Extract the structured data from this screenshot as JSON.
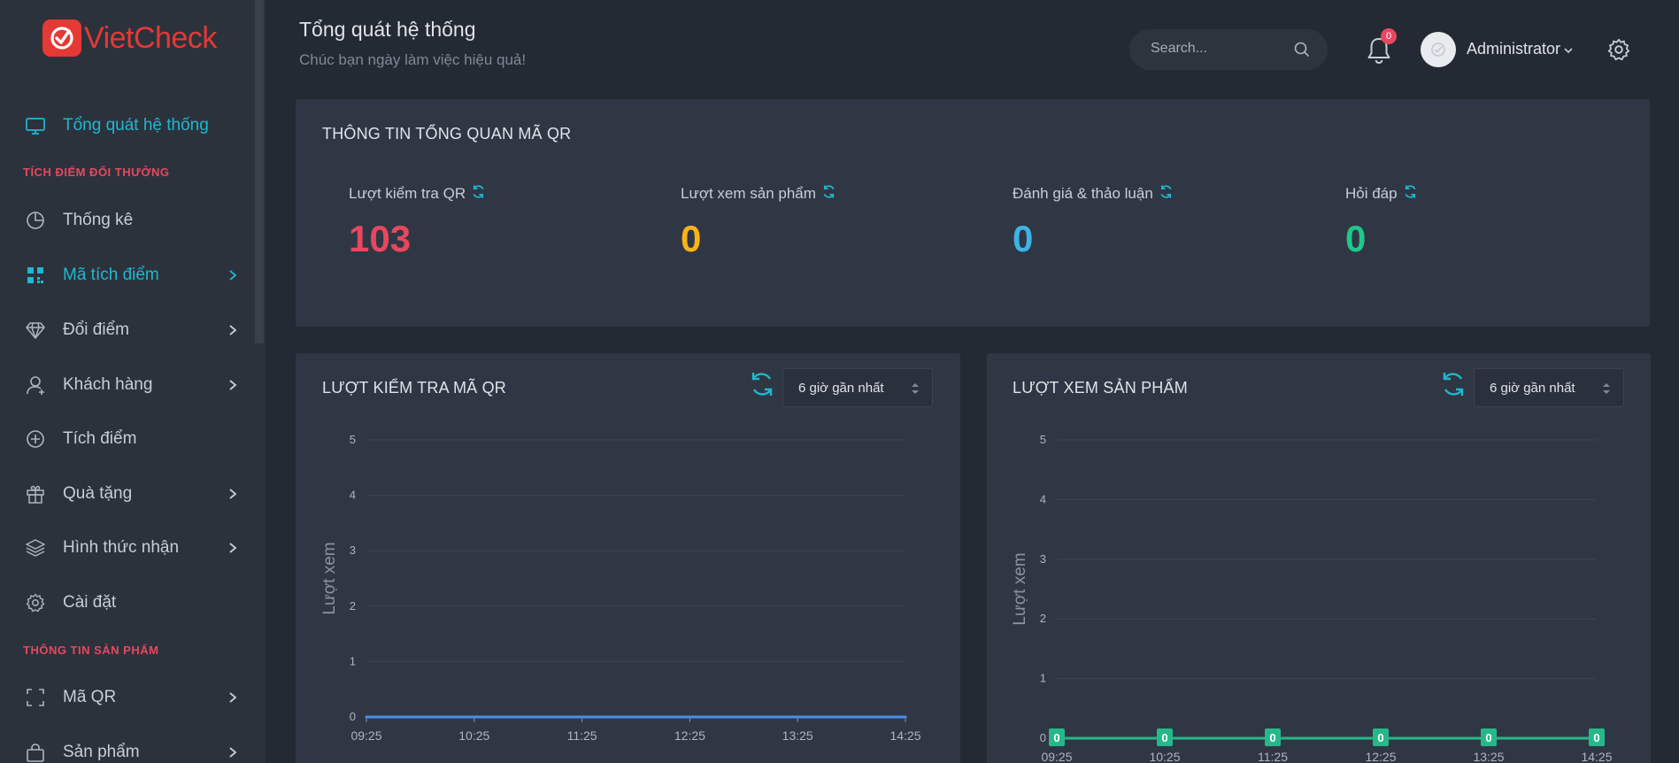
{
  "brand": {
    "name": "VietCheck",
    "color": "#e53935"
  },
  "header": {
    "title": "Tổng quát hệ thống",
    "subtitle": "Chúc bạn ngày làm việc hiệu quả!",
    "search_placeholder": "Search...",
    "notification_count": "0",
    "user_name": "Administrator"
  },
  "sidebar": {
    "items": [
      {
        "label": "Tổng quát hệ thống",
        "icon": "monitor-icon",
        "active": true
      },
      {
        "label": "Thống kê",
        "icon": "pie-chart-icon"
      },
      {
        "label": "Mã tích điểm",
        "icon": "qr-grid-icon",
        "active": true,
        "has_submenu": true
      },
      {
        "label": "Đổi điểm",
        "icon": "diamond-icon",
        "has_submenu": true
      },
      {
        "label": "Khách hàng",
        "icon": "user-icon",
        "has_submenu": true
      },
      {
        "label": "Tích điểm",
        "icon": "plus-circle-icon"
      },
      {
        "label": "Quà tặng",
        "icon": "gift-icon",
        "has_submenu": true
      },
      {
        "label": "Hình thức nhận",
        "icon": "layers-icon",
        "has_submenu": true
      },
      {
        "label": "Cài đặt",
        "icon": "gear-icon"
      },
      {
        "label": "Mã QR",
        "icon": "scan-icon",
        "has_submenu": true
      },
      {
        "label": "Sản phẩm",
        "icon": "bag-icon",
        "has_submenu": true
      }
    ],
    "sections": [
      "TÍCH ĐIỂM ĐỔI THƯỞNG",
      "THÔNG TIN SẢN PHẨM"
    ]
  },
  "overview": {
    "title": "THÔNG TIN TỔNG QUAN MÃ QR",
    "stats": [
      {
        "label": "Lượt kiểm tra QR",
        "value": "103",
        "color": "#e8475f"
      },
      {
        "label": "Lượt xem sản phẩm",
        "value": "0",
        "color": "#f6b419"
      },
      {
        "label": "Đánh giá & thảo luận",
        "value": "0",
        "color": "#3eb3e6"
      },
      {
        "label": "Hỏi đáp",
        "value": "0",
        "color": "#1ec88a"
      }
    ]
  },
  "charts_panels": [
    {
      "title": "LƯỢT KIỂM TRA MÃ QR",
      "range_select": "6 giờ gần nhất"
    },
    {
      "title": "LƯỢT XEM SẢN PHẨM",
      "range_select": "6 giờ gần nhất"
    }
  ],
  "chart_data": [
    {
      "type": "line",
      "x": [
        "09:25",
        "10:25",
        "11:25",
        "12:25",
        "13:25",
        "14:25"
      ],
      "series": [
        {
          "values": [
            0,
            0,
            0,
            0,
            0,
            0
          ],
          "color": "#4a8fe7"
        }
      ],
      "ylabel": "Lượt xem",
      "ylim": [
        0,
        5
      ],
      "yticks": [
        0,
        1,
        2,
        3,
        4,
        5
      ],
      "grid": true,
      "data_labels": false
    },
    {
      "type": "line",
      "x": [
        "09:25",
        "10:25",
        "11:25",
        "12:25",
        "13:25",
        "14:25"
      ],
      "series": [
        {
          "values": [
            0,
            0,
            0,
            0,
            0,
            0
          ],
          "color": "#26b889"
        }
      ],
      "ylabel": "Lượt xem",
      "ylim": [
        0,
        5
      ],
      "yticks": [
        0,
        1,
        2,
        3,
        4,
        5
      ],
      "grid": true,
      "data_labels": true
    }
  ]
}
